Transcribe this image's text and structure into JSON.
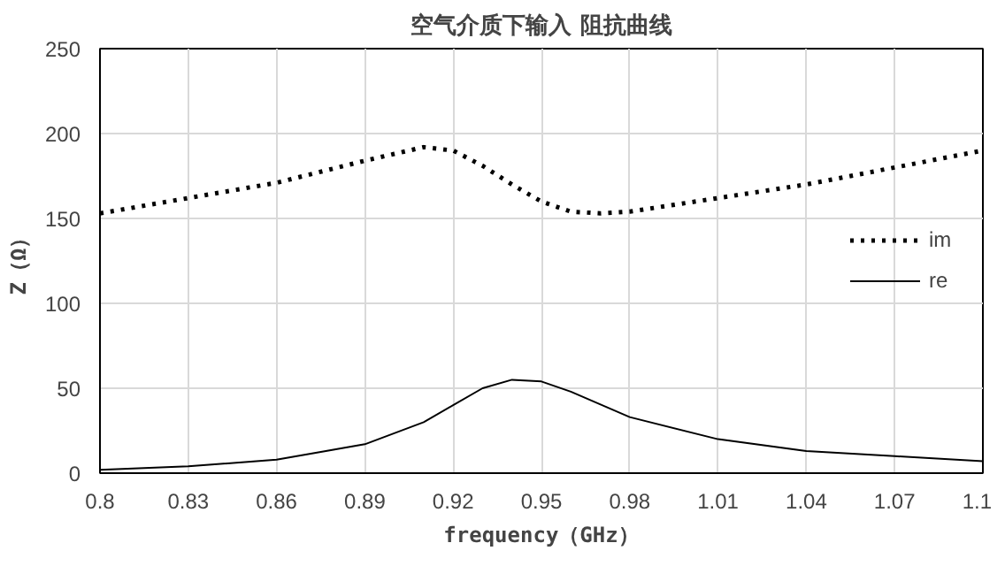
{
  "chart_data": {
    "type": "line",
    "title": "空气介质下输入 阻抗曲线",
    "xlabel": "frequency（GHz）",
    "ylabel": "Z（Ω）",
    "xlim": [
      0.8,
      1.1
    ],
    "ylim": [
      0,
      250
    ],
    "xticks": [
      0.8,
      0.83,
      0.86,
      0.89,
      0.92,
      0.95,
      0.98,
      1.01,
      1.04,
      1.07,
      1.1
    ],
    "yticks": [
      0,
      50,
      100,
      150,
      200,
      250
    ],
    "grid": true,
    "legend": "right",
    "marker": "none",
    "series": [
      {
        "name": "im",
        "color": "#000000",
        "line_style": "dotted",
        "x": [
          0.8,
          0.83,
          0.86,
          0.89,
          0.9,
          0.91,
          0.92,
          0.93,
          0.94,
          0.95,
          0.96,
          0.97,
          0.98,
          1.01,
          1.04,
          1.07,
          1.1
        ],
        "values": [
          153,
          162,
          171,
          184,
          188,
          192,
          190,
          181,
          170,
          160,
          154,
          153,
          154,
          162,
          170,
          180,
          190
        ]
      },
      {
        "name": "re",
        "color": "#000000",
        "line_style": "solid",
        "x": [
          0.8,
          0.83,
          0.86,
          0.89,
          0.91,
          0.92,
          0.93,
          0.94,
          0.95,
          0.96,
          0.98,
          1.01,
          1.04,
          1.07,
          1.1
        ],
        "values": [
          2,
          4,
          8,
          17,
          30,
          40,
          50,
          55,
          54,
          48,
          33,
          20,
          13,
          10,
          7
        ]
      }
    ]
  }
}
